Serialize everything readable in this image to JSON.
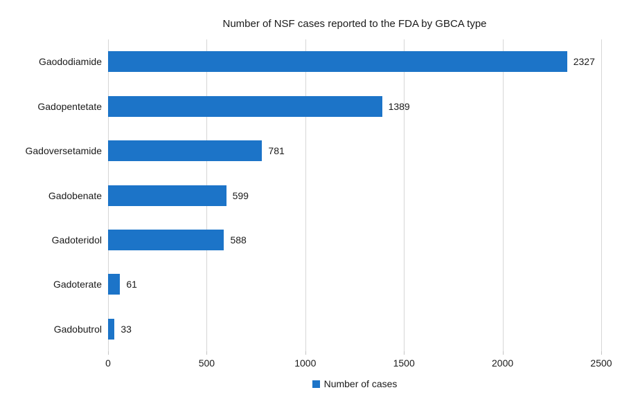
{
  "chart_data": {
    "type": "bar",
    "orientation": "horizontal",
    "title": "Number of NSF cases reported to the FDA by GBCA type",
    "categories": [
      "Gaododiamide",
      "Gadopentetate",
      "Gadoversetamide",
      "Gadobenate",
      "Gadoteridol",
      "Gadoterate",
      "Gadobutrol"
    ],
    "values": [
      2327,
      1389,
      781,
      599,
      588,
      61,
      33
    ],
    "data_labels": [
      "2327",
      "1389",
      "781",
      "599",
      "588",
      "61",
      "33"
    ],
    "xlabel": "",
    "ylabel": "",
    "xlim": [
      0,
      2500
    ],
    "x_ticks": [
      0,
      500,
      1000,
      1500,
      2000,
      2500
    ],
    "x_tick_labels": [
      "0",
      "500",
      "1000",
      "1500",
      "2000",
      "2500"
    ],
    "grid": "vertical",
    "legend": {
      "position": "bottom",
      "items": [
        {
          "label": "Number of cases",
          "color": "#1c74c8"
        }
      ]
    },
    "colors": {
      "bar": "#1c74c8",
      "gridline": "#d6d6d6",
      "text": "#1a1a1a",
      "background": "#ffffff"
    }
  }
}
